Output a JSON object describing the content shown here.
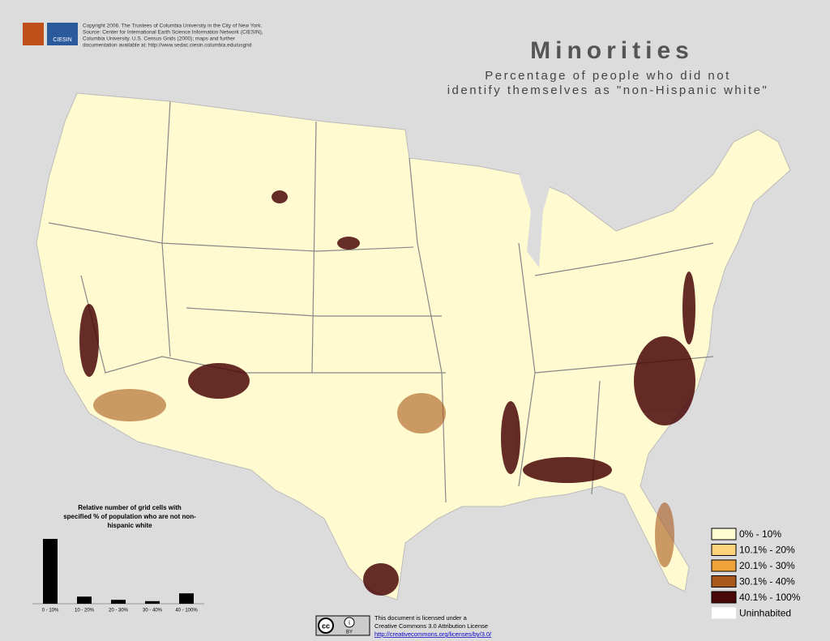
{
  "credits": [
    "Copyright 2006.  The Trustees of Columbia University in the City of New York.",
    "Source: Center for International Earth Science Information Network (CIESIN),",
    "Columbia University.  U.S. Census Grids (2000); maps and further",
    "documentation available at: http://www.sedac.ciesin.columbia.edu/usgrid"
  ],
  "logo": "CIESIN",
  "title": "Minorities",
  "subtitle": [
    "Percentage of people who did not",
    "identify themselves as \"non-Hispanic white\""
  ],
  "histogram": {
    "title": [
      "Relative number of grid cells with",
      "specified % of population who are not non-",
      "hispanic white"
    ],
    "categories": [
      "0 - 10%",
      "10 - 20%",
      "20 - 30%",
      "30 - 40%",
      "40 - 100%"
    ],
    "values": [
      100,
      11,
      6,
      4,
      16
    ],
    "color": "#000000"
  },
  "legend": [
    {
      "label": "0% - 10%",
      "color": "#fffcd0"
    },
    {
      "label": "10.1% - 20%",
      "color": "#fdd27a"
    },
    {
      "label": "20.1% - 30%",
      "color": "#eda23a"
    },
    {
      "label": "30.1% - 40%",
      "color": "#a9581c"
    },
    {
      "label": "40.1% - 100%",
      "color": "#4a0808"
    },
    {
      "label": "Uninhabited",
      "color": "#ffffff"
    }
  ],
  "license": [
    "This document is licensed under a",
    "Creative Commons 3.0 Attribution License",
    "http://creativecommons.org/licenses/by/3.0/"
  ],
  "cc_badge": [
    "cc",
    "i",
    "BY"
  ]
}
